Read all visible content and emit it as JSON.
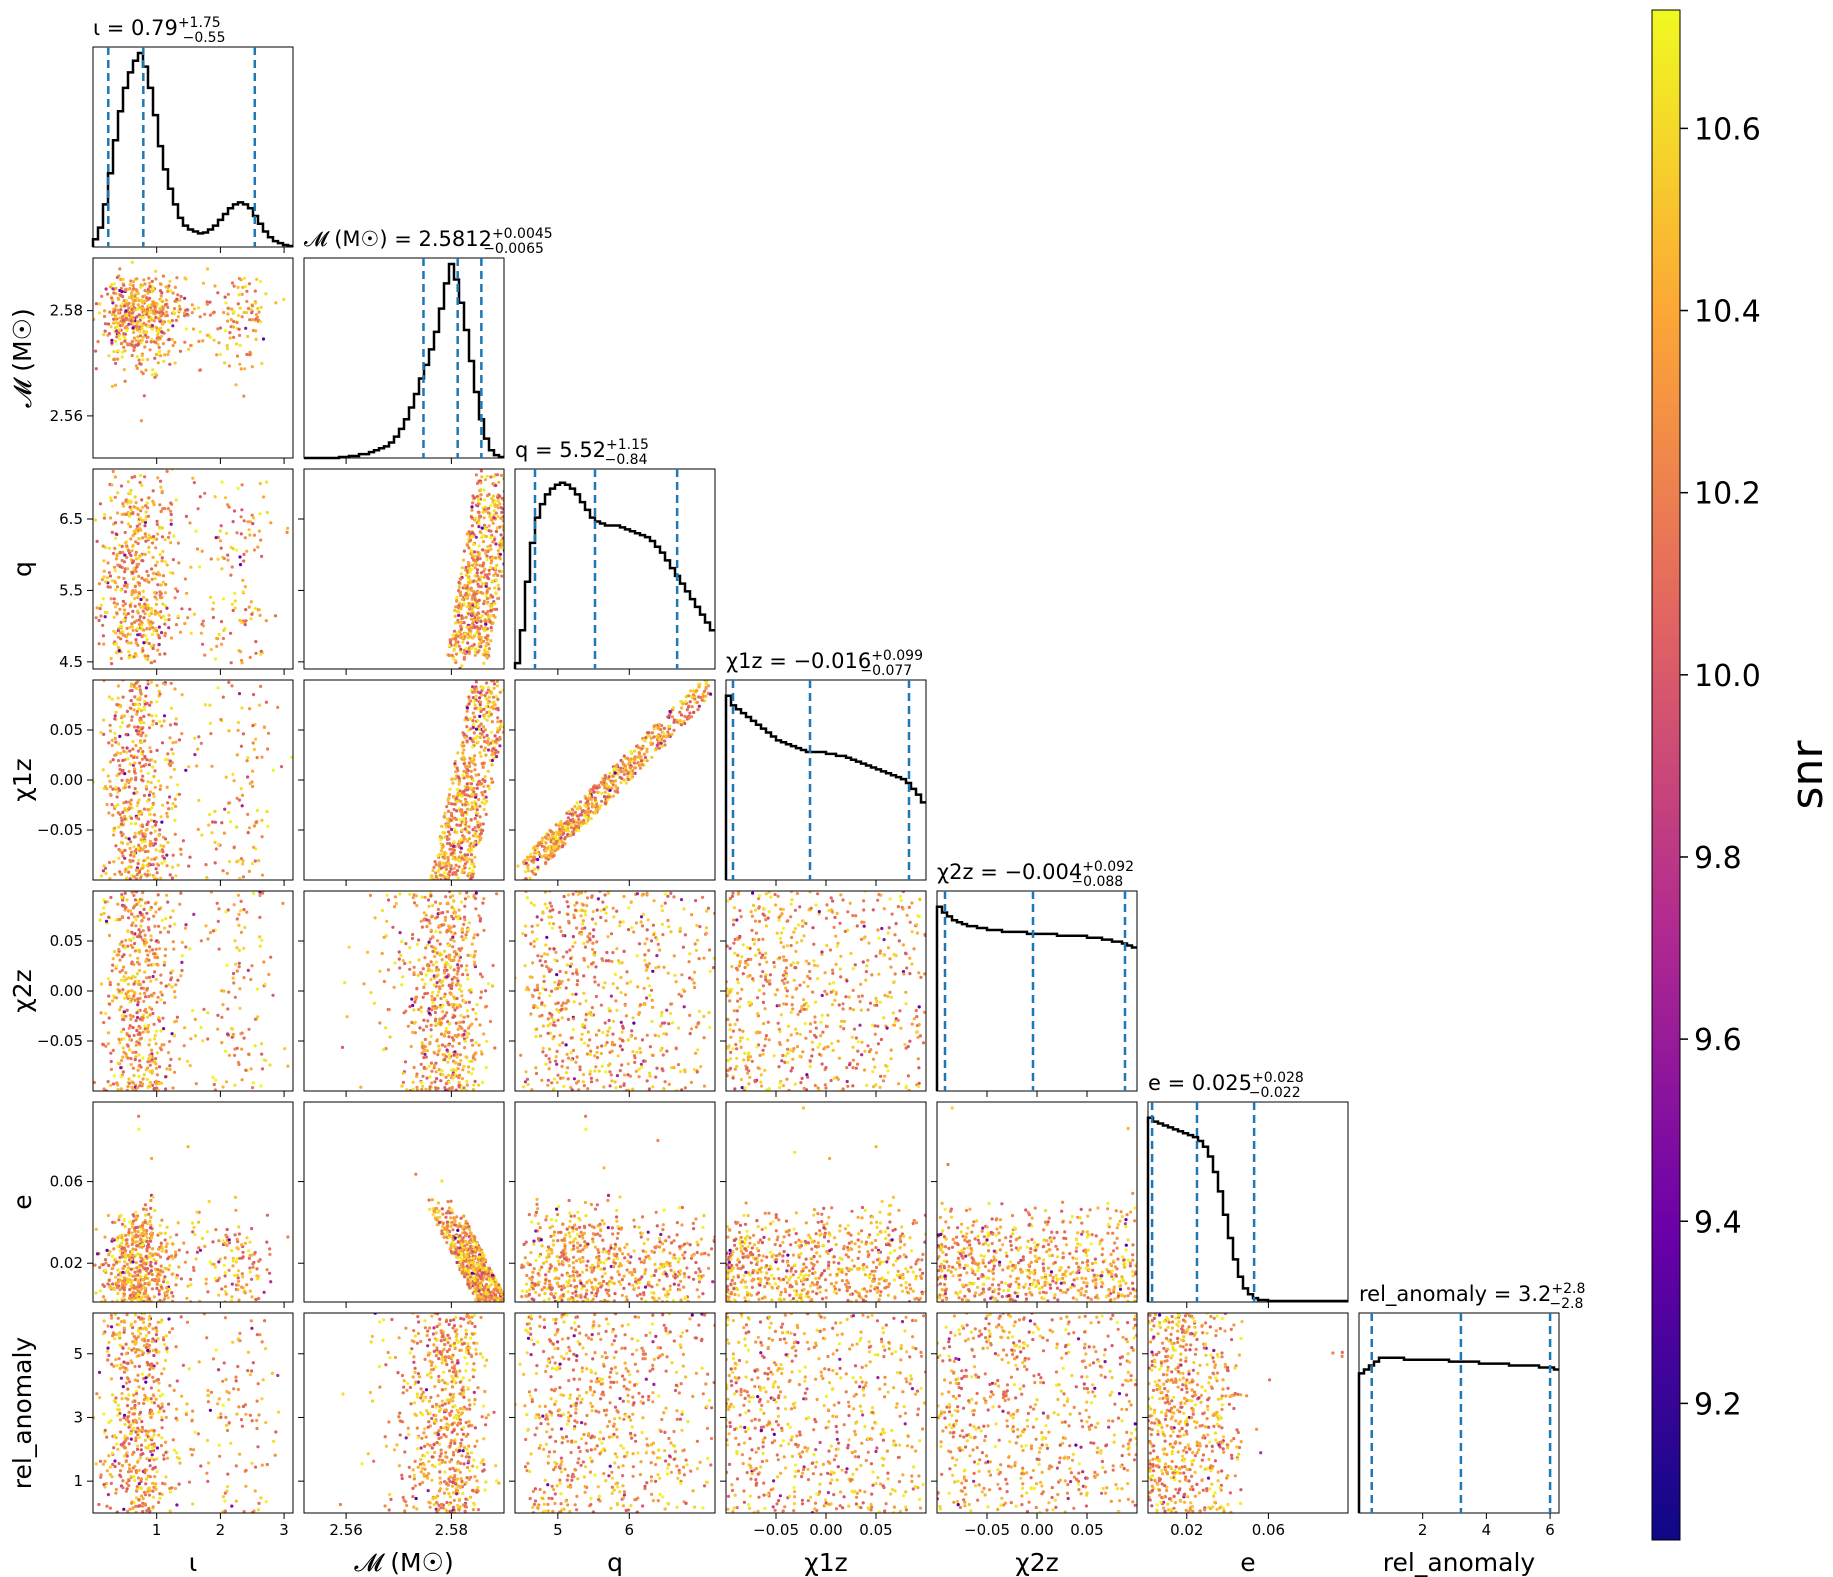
{
  "chart_data": {
    "type": "scatter",
    "subtype": "corner-plot",
    "description_label": "",
    "colorbar": {
      "label": "snr",
      "range": [
        9.05,
        10.73
      ],
      "ticks": [
        "9.2",
        "9.4",
        "9.6",
        "9.8",
        "10.0",
        "10.2",
        "10.4",
        "10.6"
      ],
      "colormap": "plasma"
    },
    "params": [
      {
        "key": "iota",
        "axis_label": "ι",
        "title_name": "ι",
        "title_value": "0.79",
        "title_plus": "+1.75",
        "title_minus": "−0.55",
        "range": [
          0.0,
          3.14
        ],
        "ticks": [
          1,
          2,
          3
        ],
        "tick_labels": [
          "1",
          "2",
          "3"
        ],
        "quantiles": [
          0.24,
          0.79,
          2.54
        ],
        "histogram": [
          0.04,
          0.1,
          0.22,
          0.38,
          0.55,
          0.7,
          0.82,
          0.9,
          0.96,
          1.0,
          0.93,
          0.82,
          0.68,
          0.52,
          0.4,
          0.3,
          0.22,
          0.15,
          0.11,
          0.09,
          0.08,
          0.07,
          0.075,
          0.09,
          0.11,
          0.14,
          0.17,
          0.2,
          0.22,
          0.23,
          0.22,
          0.2,
          0.16,
          0.12,
          0.08,
          0.05,
          0.03,
          0.02,
          0.01,
          0.005
        ]
      },
      {
        "key": "mchirp",
        "axis_label": "𝓜 (M☉)",
        "title_name": "𝓜 (M☉)",
        "title_value": "2.5812",
        "title_plus": "+0.0045",
        "title_minus": "−0.0065",
        "range": [
          2.552,
          2.59
        ],
        "ticks": [
          2.56,
          2.58
        ],
        "tick_labels": [
          "2.56",
          "2.58"
        ],
        "quantiles": [
          2.5747,
          2.5812,
          2.5857
        ],
        "histogram": [
          0.0,
          0.0,
          0.0,
          0.0,
          0.0,
          0.0,
          0.0,
          0.005,
          0.005,
          0.01,
          0.01,
          0.02,
          0.02,
          0.03,
          0.04,
          0.05,
          0.06,
          0.08,
          0.11,
          0.15,
          0.2,
          0.26,
          0.33,
          0.41,
          0.48,
          0.56,
          0.65,
          0.77,
          0.9,
          1.0,
          0.92,
          0.8,
          0.66,
          0.5,
          0.34,
          0.2,
          0.1,
          0.04,
          0.015,
          0.005
        ]
      },
      {
        "key": "q",
        "axis_label": "q",
        "title_name": "q",
        "title_value": "5.52",
        "title_plus": "+1.15",
        "title_minus": "−0.84",
        "range": [
          4.4,
          7.2
        ],
        "ticks": [
          5,
          6
        ],
        "tick_labels": [
          "5",
          "6"
        ],
        "yticks": [
          4.5,
          5.5,
          6.5
        ],
        "ytick_labels": [
          "4.5",
          "5.5",
          "6.5"
        ],
        "quantiles": [
          4.68,
          5.52,
          6.67
        ],
        "histogram": [
          0.03,
          0.2,
          0.45,
          0.65,
          0.78,
          0.85,
          0.9,
          0.93,
          0.95,
          0.96,
          0.95,
          0.93,
          0.9,
          0.86,
          0.82,
          0.78,
          0.76,
          0.75,
          0.74,
          0.74,
          0.74,
          0.73,
          0.72,
          0.71,
          0.7,
          0.69,
          0.68,
          0.66,
          0.63,
          0.6,
          0.56,
          0.52,
          0.48,
          0.44,
          0.4,
          0.36,
          0.32,
          0.28,
          0.24,
          0.2
        ]
      },
      {
        "key": "chi1z",
        "axis_label": "χ1z",
        "title_name": "χ1z",
        "title_value": "−0.016",
        "title_plus": "+0.099",
        "title_minus": "−0.077",
        "range": [
          -0.1,
          0.1
        ],
        "ticks": [
          -0.05,
          0.0,
          0.05
        ],
        "tick_labels": [
          "−0.05",
          "0.00",
          "0.05"
        ],
        "quantiles": [
          -0.093,
          -0.016,
          0.083
        ],
        "histogram": [
          0.95,
          0.9,
          0.88,
          0.86,
          0.84,
          0.82,
          0.8,
          0.78,
          0.76,
          0.74,
          0.72,
          0.71,
          0.7,
          0.69,
          0.68,
          0.67,
          0.66,
          0.66,
          0.66,
          0.66,
          0.65,
          0.65,
          0.64,
          0.64,
          0.63,
          0.62,
          0.61,
          0.6,
          0.59,
          0.58,
          0.57,
          0.56,
          0.55,
          0.54,
          0.53,
          0.52,
          0.5,
          0.47,
          0.44,
          0.4
        ]
      },
      {
        "key": "chi2z",
        "axis_label": "χ2z",
        "title_name": "χ2z",
        "title_value": "−0.004",
        "title_plus": "+0.092",
        "title_minus": "−0.088",
        "range": [
          -0.1,
          0.1
        ],
        "ticks": [
          -0.05,
          0.0,
          0.05
        ],
        "tick_labels": [
          "−0.05",
          "0.00",
          "0.05"
        ],
        "quantiles": [
          -0.092,
          -0.004,
          0.088
        ],
        "histogram": [
          0.95,
          0.92,
          0.9,
          0.88,
          0.87,
          0.86,
          0.85,
          0.85,
          0.84,
          0.84,
          0.83,
          0.83,
          0.83,
          0.82,
          0.82,
          0.82,
          0.82,
          0.82,
          0.81,
          0.81,
          0.81,
          0.81,
          0.81,
          0.81,
          0.8,
          0.8,
          0.8,
          0.8,
          0.8,
          0.8,
          0.79,
          0.79,
          0.79,
          0.78,
          0.78,
          0.77,
          0.77,
          0.76,
          0.75,
          0.74
        ]
      },
      {
        "key": "e",
        "axis_label": "e",
        "title_name": "e",
        "title_value": "0.025",
        "title_plus": "+0.028",
        "title_minus": "−0.022",
        "range": [
          0.001,
          0.099
        ],
        "ticks": [
          0.02,
          0.06
        ],
        "tick_labels": [
          "0.02",
          "0.06"
        ],
        "quantiles": [
          0.003,
          0.025,
          0.053
        ],
        "histogram": [
          0.95,
          0.93,
          0.92,
          0.91,
          0.9,
          0.89,
          0.88,
          0.87,
          0.86,
          0.85,
          0.83,
          0.8,
          0.75,
          0.67,
          0.57,
          0.45,
          0.33,
          0.22,
          0.13,
          0.07,
          0.04,
          0.02,
          0.01,
          0.01,
          0.005,
          0.005,
          0.005,
          0.005,
          0.005,
          0.005,
          0.005,
          0.005,
          0.005,
          0.005,
          0.005,
          0.005,
          0.005,
          0.005,
          0.005,
          0.005
        ]
      },
      {
        "key": "rel_anomaly",
        "axis_label": "rel_anomaly",
        "title_name": "rel_anomaly",
        "title_value": "3.2",
        "title_plus": "+2.8",
        "title_minus": "−2.8",
        "range": [
          0.0,
          6.28
        ],
        "ticks": [
          2,
          4,
          6
        ],
        "tick_labels": [
          "2",
          "4",
          "6"
        ],
        "yticks": [
          1,
          3,
          5
        ],
        "ytick_labels": [
          "1",
          "3",
          "5"
        ],
        "quantiles": [
          0.4,
          3.2,
          6.0
        ],
        "histogram": [
          0.72,
          0.74,
          0.76,
          0.78,
          0.8,
          0.8,
          0.8,
          0.8,
          0.8,
          0.79,
          0.79,
          0.79,
          0.79,
          0.79,
          0.79,
          0.79,
          0.79,
          0.79,
          0.78,
          0.78,
          0.78,
          0.78,
          0.78,
          0.78,
          0.77,
          0.77,
          0.77,
          0.77,
          0.77,
          0.77,
          0.76,
          0.76,
          0.76,
          0.76,
          0.76,
          0.76,
          0.75,
          0.75,
          0.75,
          0.74
        ]
      }
    ]
  }
}
